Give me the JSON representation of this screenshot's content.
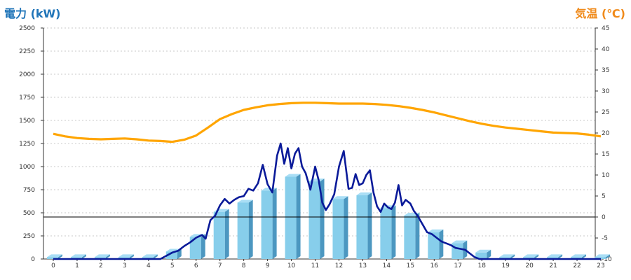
{
  "chart_data": {
    "type": "bar+line",
    "title_left": "電力 (kW)",
    "title_right": "気温 (℃)",
    "categories": [
      "0",
      "1",
      "2",
      "3",
      "4",
      "5",
      "6",
      "7",
      "8",
      "9",
      "10",
      "11",
      "12",
      "13",
      "14",
      "15",
      "16",
      "17",
      "18",
      "19",
      "20",
      "21",
      "22",
      "23"
    ],
    "left_axis": {
      "range": [
        0,
        2500
      ],
      "ticks": [
        "0",
        "250",
        "500",
        "750",
        "1000",
        "1250",
        "1500",
        "1750",
        "2000",
        "2250",
        "2500"
      ]
    },
    "right_axis": {
      "range": [
        -10,
        45
      ],
      "ticks": [
        "-10",
        "-5",
        "0",
        "5",
        "10",
        "15",
        "20",
        "25",
        "30",
        "35",
        "40",
        "45"
      ]
    },
    "grid": "horizontal-dashed",
    "series": [
      {
        "kind": "bar",
        "axis": "left",
        "color": "#87ceeb",
        "values": [
          20,
          20,
          20,
          20,
          20,
          80,
          240,
          510,
          610,
          740,
          890,
          840,
          650,
          690,
          550,
          470,
          290,
          170,
          70,
          20,
          20,
          20,
          20,
          20
        ]
      },
      {
        "kind": "line",
        "axis": "left",
        "color": "#0a1a99",
        "x": [
          0,
          0.5,
          1,
          1.5,
          2,
          2.5,
          3,
          3.5,
          4,
          4.5,
          5,
          5.25,
          5.5,
          5.75,
          6,
          6.25,
          6.4,
          6.6,
          6.8,
          7,
          7.2,
          7.4,
          7.6,
          7.8,
          8,
          8.2,
          8.4,
          8.6,
          8.8,
          9,
          9.2,
          9.4,
          9.55,
          9.7,
          9.85,
          10,
          10.15,
          10.3,
          10.45,
          10.6,
          10.8,
          11,
          11.15,
          11.3,
          11.45,
          11.6,
          11.8,
          12,
          12.2,
          12.4,
          12.55,
          12.7,
          12.85,
          13,
          13.15,
          13.3,
          13.45,
          13.6,
          13.75,
          13.9,
          14.05,
          14.2,
          14.35,
          14.5,
          14.65,
          14.8,
          15,
          15.15,
          15.3,
          15.5,
          15.7,
          15.9,
          16.1,
          16.3,
          16.5,
          16.7,
          16.9,
          17.1,
          17.3,
          17.5,
          17.7,
          17.9,
          18.1,
          18.3,
          18.5,
          19,
          20,
          21,
          22,
          23
        ],
        "values": [
          0,
          0,
          0,
          0,
          0,
          0,
          0,
          0,
          0,
          0,
          70,
          90,
          140,
          180,
          230,
          260,
          220,
          420,
          470,
          580,
          650,
          600,
          640,
          670,
          680,
          760,
          740,
          820,
          1020,
          810,
          720,
          1120,
          1250,
          1030,
          1200,
          980,
          1140,
          1200,
          1000,
          930,
          750,
          1000,
          850,
          610,
          530,
          590,
          700,
          1000,
          1170,
          760,
          770,
          920,
          800,
          820,
          910,
          960,
          720,
          570,
          510,
          600,
          560,
          540,
          610,
          800,
          580,
          640,
          600,
          520,
          470,
          380,
          290,
          270,
          230,
          190,
          170,
          150,
          120,
          110,
          100,
          60,
          20,
          0,
          0,
          0,
          0,
          0,
          0,
          0,
          0,
          0
        ]
      },
      {
        "kind": "line",
        "axis": "right",
        "color": "#ffa500",
        "x": [
          0,
          0.5,
          1,
          1.5,
          2,
          2.5,
          3,
          3.5,
          4,
          4.5,
          5,
          5.5,
          6,
          6.5,
          7,
          7.5,
          8,
          8.5,
          9,
          9.5,
          10,
          10.5,
          11,
          11.5,
          12,
          12.5,
          13,
          13.5,
          14,
          14.5,
          15,
          15.5,
          16,
          16.5,
          17,
          17.5,
          18,
          18.5,
          19,
          19.5,
          20,
          20.5,
          21,
          21.5,
          22,
          22.5,
          23
        ],
        "values": [
          19.8,
          19.2,
          18.8,
          18.6,
          18.5,
          18.6,
          18.7,
          18.5,
          18.2,
          18.1,
          17.9,
          18.4,
          19.4,
          21.3,
          23.3,
          24.5,
          25.5,
          26.1,
          26.6,
          26.9,
          27.1,
          27.2,
          27.2,
          27.1,
          27.0,
          27.0,
          27.0,
          26.9,
          26.7,
          26.4,
          26.0,
          25.5,
          24.9,
          24.2,
          23.5,
          22.8,
          22.2,
          21.7,
          21.3,
          21.0,
          20.7,
          20.4,
          20.1,
          20.0,
          19.9,
          19.6,
          19.2
        ]
      }
    ],
    "reference_line": {
      "axis": "right",
      "value": 0
    }
  }
}
